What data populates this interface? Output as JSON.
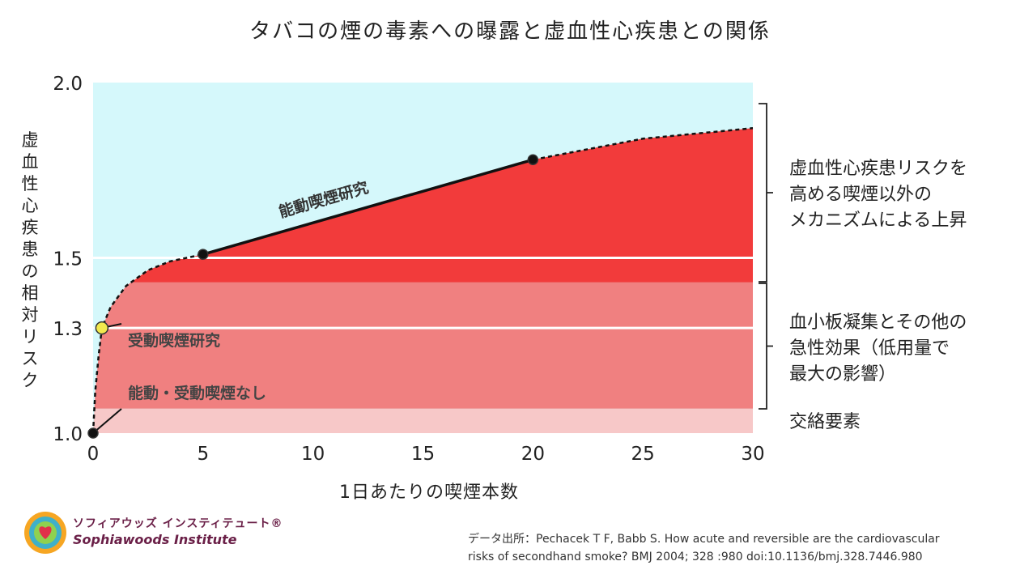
{
  "title": "タバコの煙の毒素への曝露と虚血性心疾患との関係",
  "chart_data": {
    "type": "area",
    "xlabel": "1日あたりの喫煙本数",
    "ylabel": "虚血性心疾患の相対リスク",
    "xlim": [
      0,
      30
    ],
    "ylim": [
      1.0,
      2.0
    ],
    "x_ticks": [
      "0",
      "5",
      "10",
      "15",
      "20",
      "25",
      "30"
    ],
    "y_ticks": [
      "1.0",
      "1.3",
      "1.5",
      "2.0"
    ],
    "y_tick_values": [
      1.0,
      1.3,
      1.5,
      2.0
    ],
    "y_gridlines": [
      1.3,
      1.5
    ],
    "curve": [
      {
        "x": 0,
        "y": 1.0
      },
      {
        "x": 0.1,
        "y": 1.12
      },
      {
        "x": 0.25,
        "y": 1.22
      },
      {
        "x": 0.4,
        "y": 1.3
      },
      {
        "x": 0.8,
        "y": 1.36
      },
      {
        "x": 1.5,
        "y": 1.42
      },
      {
        "x": 2.5,
        "y": 1.465
      },
      {
        "x": 3.5,
        "y": 1.49
      },
      {
        "x": 5,
        "y": 1.51
      },
      {
        "x": 10,
        "y": 1.6
      },
      {
        "x": 15,
        "y": 1.69
      },
      {
        "x": 20,
        "y": 1.78
      },
      {
        "x": 25,
        "y": 1.84
      },
      {
        "x": 30,
        "y": 1.87
      }
    ],
    "active_study_segment": [
      {
        "x": 5,
        "y": 1.51
      },
      {
        "x": 20,
        "y": 1.78
      }
    ],
    "points": [
      {
        "x": 0,
        "y": 1.0,
        "label": "能動・受動喫煙なし",
        "color": "#111111"
      },
      {
        "x": 0.4,
        "y": 1.3,
        "label": "受動喫煙研究",
        "color": "#f2e94e"
      },
      {
        "x": 5,
        "y": 1.51,
        "color": "#111111"
      },
      {
        "x": 20,
        "y": 1.78,
        "color": "#111111"
      }
    ],
    "segment_label": "能動喫煙研究",
    "bands": [
      {
        "from": 1.0,
        "to": 1.07,
        "label": "交絡要素",
        "color": "#f7c8c8"
      },
      {
        "from": 1.07,
        "to": 1.43,
        "label": "血小板凝集とその他の\n急性効果（低用量で\n最大の影響）",
        "color": "#f08080"
      },
      {
        "from": 1.43,
        "to": 2.0,
        "label": "虚血性心疾患リスクを\n高める喫煙以外の\nメカニズムによる上昇",
        "color": "#f23b3b"
      }
    ],
    "colors": {
      "background": "#d5f8fb",
      "curve": "#111111"
    }
  },
  "logo": {
    "jp": "ソフィアウッズ インスティテュート®",
    "en": "Sophiawoods Institute"
  },
  "source": "データ出所：Pechacek T F, Babb S. How acute and reversible are the cardiovascular\nrisks of secondhand smoke? BMJ 2004; 328 :980 doi:10.1136/bmj.328.7446.980"
}
